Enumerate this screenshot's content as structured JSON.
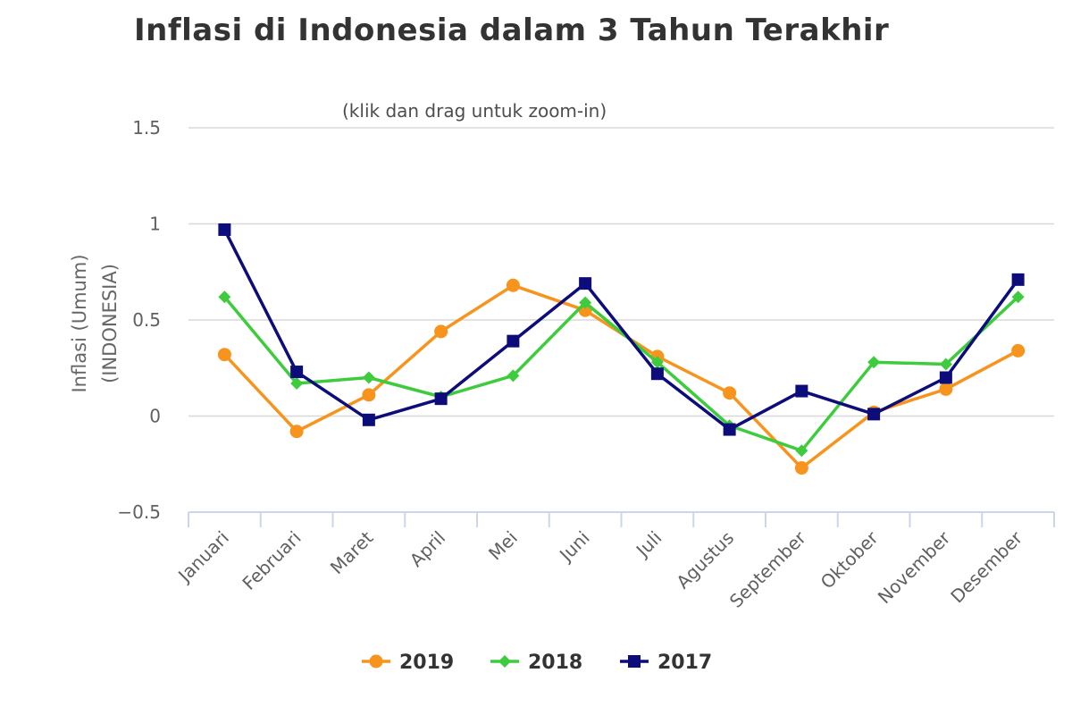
{
  "chart_data": {
    "type": "line",
    "title": "Inflasi di Indonesia dalam 3 Tahun Terakhir",
    "subtitle": "(klik dan drag untuk zoom-in)",
    "ylabel": [
      "Inflasi (Umum)",
      "(INDONESIA)"
    ],
    "xlabel": "",
    "ylim": [
      -0.5,
      1.5
    ],
    "yticks": [
      1.5,
      1,
      0.5,
      0,
      -0.5
    ],
    "ytick_labels": [
      "1.5",
      "1",
      "0.5",
      "0",
      "−0.5"
    ],
    "grid": true,
    "legend_position": "bottom-center",
    "categories": [
      "Januari",
      "Februari",
      "Maret",
      "April",
      "Mei",
      "Juni",
      "Juli",
      "Agustus",
      "September",
      "Oktober",
      "November",
      "Desember"
    ],
    "series": [
      {
        "name": "2019",
        "color": "#f7941d",
        "marker": "circle",
        "values": [
          0.32,
          -0.08,
          0.11,
          0.44,
          0.68,
          0.55,
          0.31,
          0.12,
          -0.27,
          0.02,
          0.14,
          0.34
        ]
      },
      {
        "name": "2018",
        "color": "#3ecc3e",
        "marker": "diamond",
        "values": [
          0.62,
          0.17,
          0.2,
          0.1,
          0.21,
          0.59,
          0.28,
          -0.05,
          -0.18,
          0.28,
          0.27,
          0.62
        ]
      },
      {
        "name": "2017",
        "color": "#0c0c7a",
        "marker": "square",
        "values": [
          0.97,
          0.23,
          -0.02,
          0.09,
          0.39,
          0.69,
          0.22,
          -0.07,
          0.13,
          0.01,
          0.2,
          0.71
        ]
      }
    ]
  }
}
